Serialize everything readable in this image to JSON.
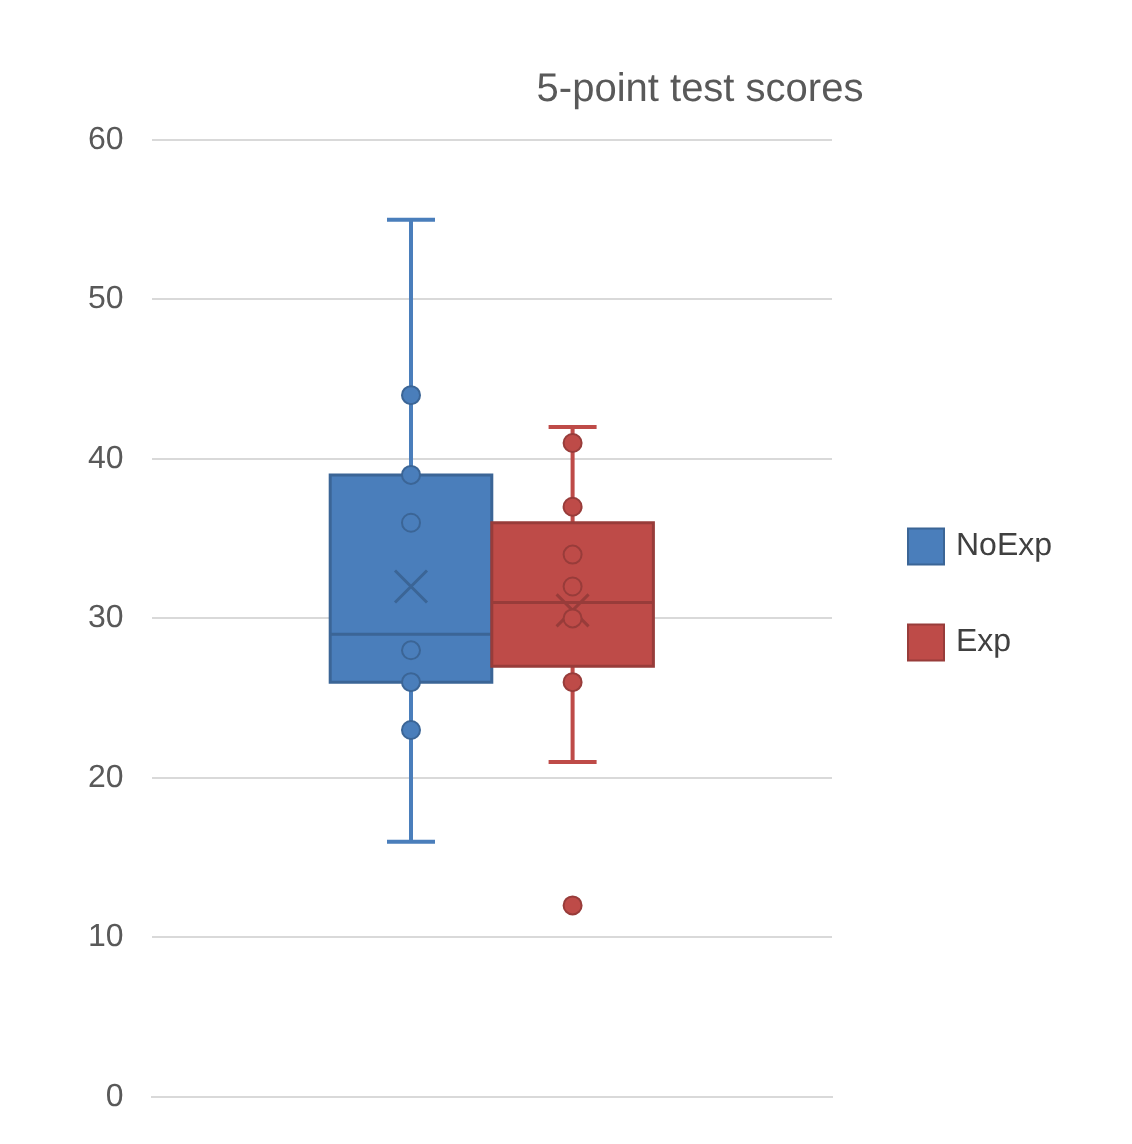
{
  "chart_data": {
    "type": "box",
    "title": "5-point test scores",
    "categories": [
      null
    ],
    "series": [
      {
        "name": "NoExp",
        "color": "#4a7ebb",
        "boxes": [
          {
            "low": 16,
            "q1": 26,
            "median": 29,
            "q3": 39,
            "high": 55,
            "mean": 32
          }
        ]
      },
      {
        "name": "Exp",
        "color": "#be4b48",
        "boxes": [
          {
            "low": 21,
            "q1": 27,
            "median": 31,
            "q3": 36,
            "high": 42,
            "mean": 30.5,
            "outliers": [
              12
            ]
          }
        ]
      },
      {
        "type": "scatter",
        "color": "#4a7ebb",
        "x": [
          null,
          null,
          null,
          null,
          null,
          null
        ],
        "values": [
          44,
          39,
          36,
          28,
          26,
          23
        ]
      },
      {
        "type": "scatter",
        "color": "#be4b48",
        "x": [
          null,
          null,
          null,
          null,
          null,
          null
        ],
        "values": [
          41,
          37,
          34,
          32,
          30,
          26
        ]
      }
    ],
    "ylim": [
      0,
      60
    ],
    "yticks": [
      0,
      10,
      20,
      30,
      40,
      50,
      60
    ],
    "grid": "y",
    "legend": "right",
    "marker": "circle"
  }
}
